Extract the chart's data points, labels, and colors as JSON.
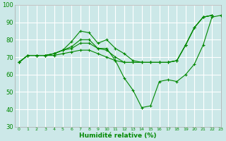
{
  "xlabel": "Humidité relative (%)",
  "bg_color": "#cce8e8",
  "grid_color": "#ffffff",
  "line_color": "#008800",
  "marker": "+",
  "ylim": [
    30,
    100
  ],
  "xlim": [
    -0.5,
    23
  ],
  "yticks": [
    30,
    40,
    50,
    60,
    70,
    80,
    90,
    100
  ],
  "xticks": [
    0,
    1,
    2,
    3,
    4,
    5,
    6,
    7,
    8,
    9,
    10,
    11,
    12,
    13,
    14,
    15,
    16,
    17,
    18,
    19,
    20,
    21,
    22,
    23
  ],
  "lines": [
    {
      "x": [
        0,
        1,
        2,
        3,
        4,
        5,
        6,
        7,
        8,
        9,
        10,
        11,
        12,
        13,
        14,
        15,
        16,
        17,
        18,
        19,
        20,
        21,
        22
      ],
      "y": [
        67,
        71,
        71,
        71,
        72,
        74,
        79,
        85,
        84,
        78,
        80,
        75,
        72,
        68,
        67,
        67,
        67,
        67,
        68,
        77,
        87,
        93,
        94
      ]
    },
    {
      "x": [
        0,
        1,
        2,
        3,
        4,
        5,
        6,
        7,
        8,
        9,
        10,
        11,
        12,
        13,
        14,
        15,
        16,
        17,
        18,
        19,
        20,
        21,
        22,
        23
      ],
      "y": [
        67,
        71,
        71,
        71,
        72,
        74,
        76,
        80,
        80,
        75,
        75,
        68,
        58,
        51,
        41,
        42,
        56,
        57,
        56,
        60,
        66,
        77,
        93,
        94
      ]
    },
    {
      "x": [
        0,
        1,
        2,
        3,
        4,
        5,
        6,
        7,
        8,
        9,
        10,
        11,
        12,
        13,
        14,
        15,
        16,
        17,
        18,
        19,
        20,
        21,
        22
      ],
      "y": [
        67,
        71,
        71,
        71,
        72,
        74,
        75,
        78,
        78,
        75,
        74,
        70,
        67,
        67,
        67,
        67,
        67,
        67,
        68,
        77,
        87,
        93,
        94
      ]
    },
    {
      "x": [
        0,
        1,
        2,
        3,
        4,
        5,
        6,
        7,
        8,
        9,
        10,
        11,
        12,
        13,
        14,
        15,
        16,
        17,
        18,
        19,
        20,
        21,
        22
      ],
      "y": [
        67,
        71,
        71,
        71,
        71,
        72,
        73,
        74,
        74,
        72,
        70,
        68,
        67,
        67,
        67,
        67,
        67,
        67,
        68,
        77,
        87,
        93,
        94
      ]
    }
  ],
  "xlabel_fontsize": 6.5,
  "xtick_fontsize": 4.5,
  "ytick_fontsize": 6.0
}
